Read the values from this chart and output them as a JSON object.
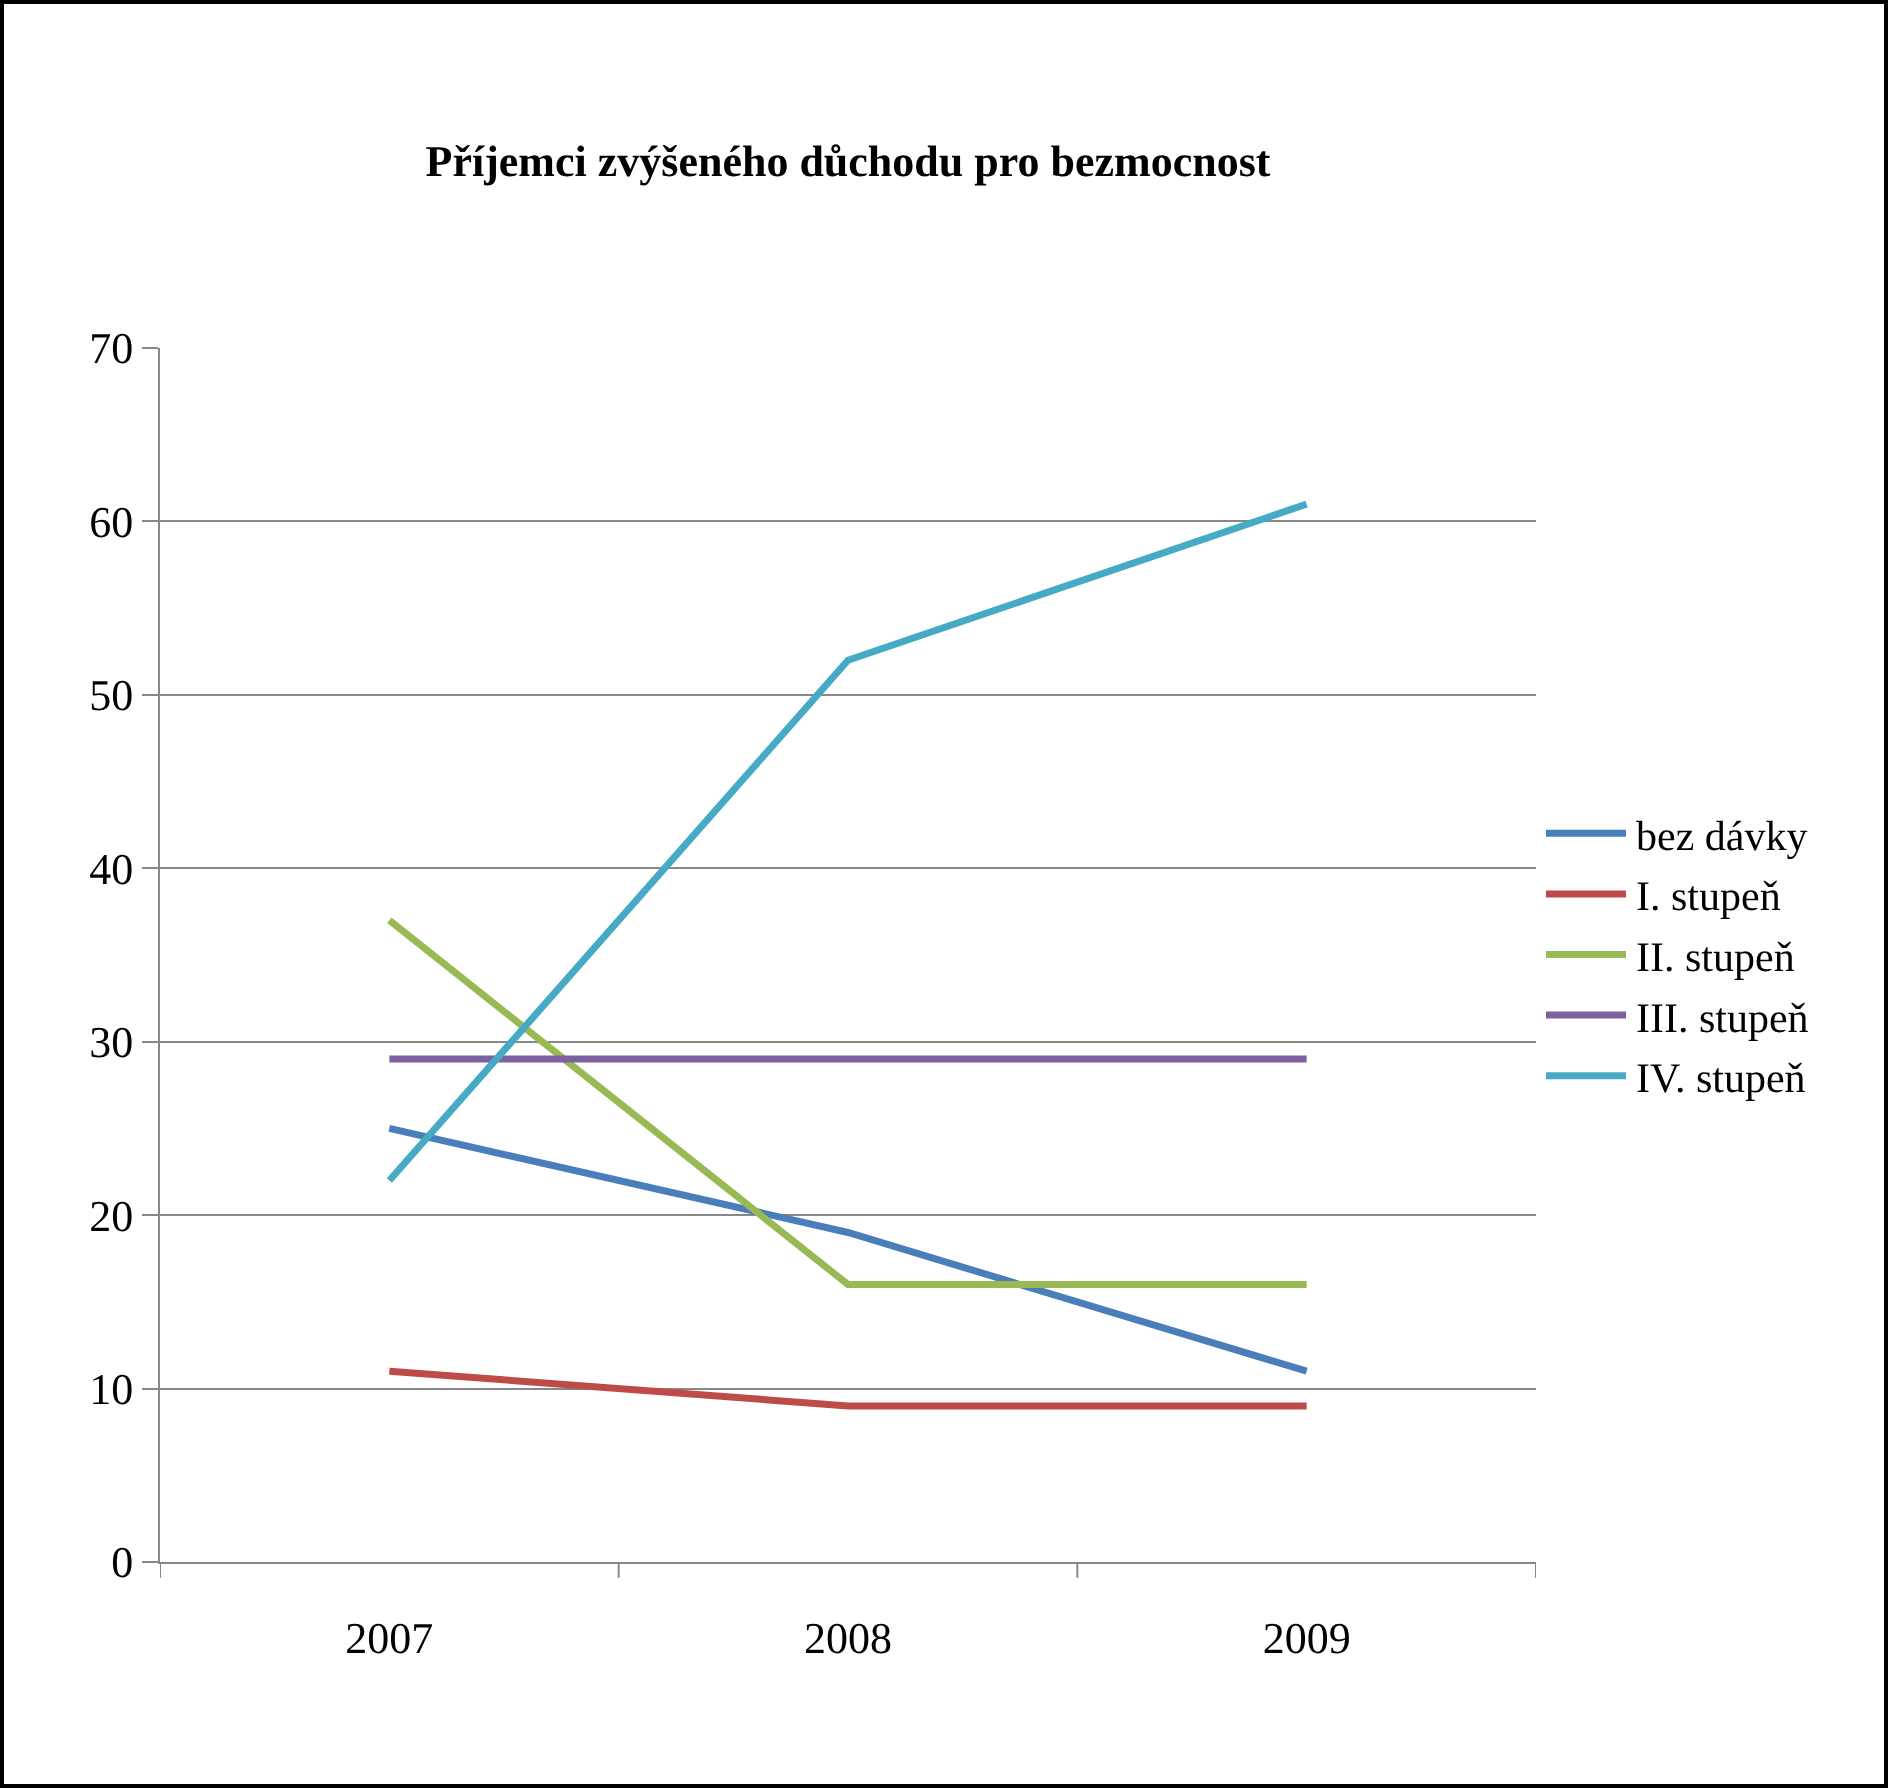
{
  "chart_data": {
    "type": "line",
    "title": "Příjemci zvýšeného důchodu pro bezmocnost",
    "categories": [
      "2007",
      "2008",
      "2009"
    ],
    "series": [
      {
        "name": "bez dávky",
        "color": "#4a7ebb",
        "values": [
          25,
          19,
          11
        ]
      },
      {
        "name": "I. stupeň",
        "color": "#be4b48",
        "values": [
          11,
          9,
          9
        ]
      },
      {
        "name": "II. stupeň",
        "color": "#98b954",
        "values": [
          37,
          16,
          16
        ]
      },
      {
        "name": "III. stupeň",
        "color": "#7d60a0",
        "values": [
          29,
          29,
          29
        ]
      },
      {
        "name": "IV. stupeň",
        "color": "#46aac5",
        "values": [
          22,
          52,
          61
        ]
      }
    ],
    "ylim": [
      0,
      70
    ],
    "yticks": [
      0,
      10,
      20,
      30,
      40,
      50,
      60,
      70
    ],
    "grid": "y",
    "legend": "right",
    "marker": "none",
    "line_style": "solid"
  }
}
